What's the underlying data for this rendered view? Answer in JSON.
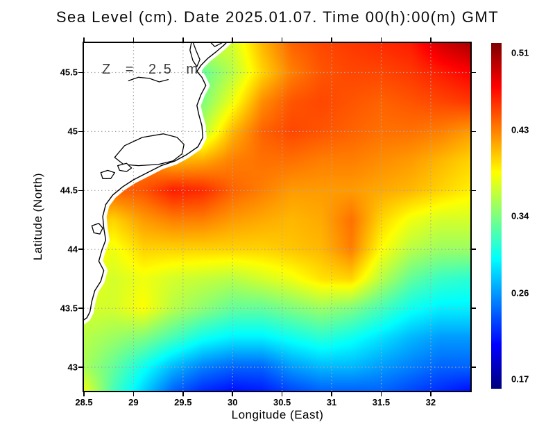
{
  "title": "Sea Level (cm). Date 2025.01.07. Time 00(h):00(m) GMT",
  "annotation": "Z = 2.5 m",
  "axes": {
    "xlabel": "Longitude (East)",
    "ylabel": "Latitude (North)",
    "x_ticks": [
      {
        "value": 28.5,
        "label": "28.5"
      },
      {
        "value": 29,
        "label": "29"
      },
      {
        "value": 29.5,
        "label": "29.5"
      },
      {
        "value": 30,
        "label": "30"
      },
      {
        "value": 30.5,
        "label": "30.5"
      },
      {
        "value": 31,
        "label": "31"
      },
      {
        "value": 31.5,
        "label": "31.5"
      },
      {
        "value": 32,
        "label": "32"
      }
    ],
    "y_ticks": [
      {
        "value": 45.5,
        "label": "45.5"
      },
      {
        "value": 45,
        "label": "45"
      },
      {
        "value": 44.5,
        "label": "44.5"
      },
      {
        "value": 44,
        "label": "44"
      },
      {
        "value": 43.5,
        "label": "43.5"
      },
      {
        "value": 43,
        "label": "43"
      }
    ]
  },
  "colorbar": {
    "vmin": 0.16,
    "vmax": 0.52,
    "labels": [
      {
        "value": 0.51,
        "label": "0.51"
      },
      {
        "value": 0.43,
        "label": "0.43"
      },
      {
        "value": 0.34,
        "label": "0.34"
      },
      {
        "value": 0.26,
        "label": "0.26"
      },
      {
        "value": 0.17,
        "label": "0.17"
      }
    ]
  },
  "colors": {
    "background": "#ffffff",
    "border": "#000000",
    "gridline": "#a8a8a8",
    "land": "#ffffff",
    "coastline": "#000000",
    "annotation_text": "#3d3d3d"
  },
  "chart_data": {
    "type": "heatmap",
    "title": "Sea Level (cm). Date 2025.01.07. Time 00(h):00(m) GMT",
    "xlabel": "Longitude (East)",
    "ylabel": "Latitude (North)",
    "annotation": "Z = 2.5 m",
    "grid": true,
    "colormap": "jet",
    "value_range": [
      0.16,
      0.52
    ],
    "colorbar_ticks": [
      0.51,
      0.43,
      0.34,
      0.26,
      0.17
    ],
    "xlim": [
      28.5,
      32.4
    ],
    "ylim": [
      42.8,
      45.75
    ],
    "x": [
      28.5,
      28.8,
      29.1,
      29.4,
      29.7,
      30.0,
      30.3,
      30.6,
      30.9,
      31.2,
      31.5,
      31.8,
      32.1,
      32.4
    ],
    "y": [
      45.75,
      45.5,
      45.25,
      45.0,
      44.75,
      44.5,
      44.25,
      44.0,
      43.75,
      43.5,
      43.25,
      43.0,
      42.8
    ],
    "values": [
      [
        0.4,
        0.4,
        0.4,
        0.39,
        0.37,
        0.37,
        0.41,
        0.44,
        0.45,
        0.455,
        0.46,
        0.465,
        0.49,
        0.505
      ],
      [
        0.4,
        0.4,
        0.4,
        0.37,
        0.33,
        0.36,
        0.4,
        0.43,
        0.445,
        0.45,
        0.45,
        0.455,
        0.465,
        0.475
      ],
      [
        0.41,
        0.41,
        0.41,
        0.38,
        0.34,
        0.38,
        0.425,
        0.445,
        0.45,
        0.445,
        0.44,
        0.445,
        0.45,
        0.455
      ],
      [
        0.42,
        0.42,
        0.42,
        0.4,
        0.36,
        0.41,
        0.44,
        0.45,
        0.445,
        0.44,
        0.435,
        0.435,
        0.43,
        0.42
      ],
      [
        0.43,
        0.43,
        0.43,
        0.41,
        0.415,
        0.43,
        0.435,
        0.435,
        0.43,
        0.43,
        0.425,
        0.42,
        0.41,
        0.4
      ],
      [
        0.44,
        0.44,
        0.445,
        0.465,
        0.46,
        0.44,
        0.43,
        0.42,
        0.42,
        0.42,
        0.415,
        0.41,
        0.4,
        0.39
      ],
      [
        0.41,
        0.4,
        0.42,
        0.43,
        0.43,
        0.42,
        0.415,
        0.41,
        0.415,
        0.435,
        0.4,
        0.38,
        0.37,
        0.37
      ],
      [
        0.39,
        0.38,
        0.4,
        0.4,
        0.4,
        0.4,
        0.4,
        0.405,
        0.41,
        0.43,
        0.385,
        0.36,
        0.35,
        0.35
      ],
      [
        0.38,
        0.37,
        0.38,
        0.37,
        0.365,
        0.36,
        0.37,
        0.38,
        0.395,
        0.4,
        0.36,
        0.33,
        0.315,
        0.31
      ],
      [
        0.37,
        0.37,
        0.385,
        0.36,
        0.345,
        0.33,
        0.33,
        0.34,
        0.35,
        0.34,
        0.32,
        0.3,
        0.29,
        0.29
      ],
      [
        0.36,
        0.35,
        0.34,
        0.32,
        0.3,
        0.29,
        0.29,
        0.3,
        0.31,
        0.3,
        0.285,
        0.27,
        0.26,
        0.26
      ],
      [
        0.355,
        0.33,
        0.3,
        0.27,
        0.25,
        0.24,
        0.24,
        0.26,
        0.27,
        0.27,
        0.26,
        0.25,
        0.24,
        0.24
      ],
      [
        0.38,
        0.32,
        0.28,
        0.24,
        0.22,
        0.21,
        0.215,
        0.23,
        0.24,
        0.24,
        0.24,
        0.23,
        0.22,
        0.21
      ]
    ],
    "coastline": [
      [
        29.97,
        45.78
      ],
      [
        29.91,
        45.73
      ],
      [
        29.84,
        45.68
      ],
      [
        29.75,
        45.62
      ],
      [
        29.68,
        45.56
      ],
      [
        29.64,
        45.51
      ],
      [
        29.69,
        45.46
      ],
      [
        29.73,
        45.39
      ],
      [
        29.68,
        45.31
      ],
      [
        29.64,
        45.22
      ],
      [
        29.66,
        45.14
      ],
      [
        29.69,
        45.05
      ],
      [
        29.7,
        44.95
      ],
      [
        29.65,
        44.87
      ],
      [
        29.53,
        44.8
      ],
      [
        29.42,
        44.75
      ],
      [
        29.28,
        44.71
      ],
      [
        29.14,
        44.65
      ],
      [
        29.0,
        44.59
      ],
      [
        28.89,
        44.53
      ],
      [
        28.79,
        44.46
      ],
      [
        28.72,
        44.38
      ],
      [
        28.69,
        44.28
      ],
      [
        28.7,
        44.18
      ],
      [
        28.72,
        44.08
      ],
      [
        28.68,
        43.99
      ],
      [
        28.65,
        43.9
      ],
      [
        28.7,
        43.82
      ],
      [
        28.67,
        43.73
      ],
      [
        28.61,
        43.65
      ],
      [
        28.58,
        43.56
      ],
      [
        28.56,
        43.47
      ],
      [
        28.53,
        43.42
      ],
      [
        28.48,
        43.39
      ]
    ],
    "lakes": [
      [
        [
          28.81,
          44.78
        ],
        [
          28.91,
          44.88
        ],
        [
          29.09,
          44.95
        ],
        [
          29.3,
          44.98
        ],
        [
          29.44,
          44.95
        ],
        [
          29.51,
          44.89
        ],
        [
          29.49,
          44.81
        ],
        [
          29.4,
          44.75
        ],
        [
          29.25,
          44.72
        ],
        [
          29.05,
          44.71
        ],
        [
          28.9,
          44.72
        ]
      ],
      [
        [
          29.59,
          45.78
        ],
        [
          29.63,
          45.69
        ],
        [
          29.67,
          45.61
        ],
        [
          29.64,
          45.55
        ],
        [
          29.6,
          45.6
        ],
        [
          29.57,
          45.69
        ]
      ],
      [
        [
          28.67,
          44.65
        ],
        [
          28.74,
          44.67
        ],
        [
          28.81,
          44.65
        ],
        [
          28.77,
          44.6
        ],
        [
          28.69,
          44.6
        ]
      ],
      [
        [
          28.84,
          44.71
        ],
        [
          28.93,
          44.73
        ],
        [
          28.98,
          44.69
        ],
        [
          28.93,
          44.66
        ],
        [
          28.86,
          44.67
        ]
      ],
      [
        [
          28.58,
          44.2
        ],
        [
          28.65,
          44.22
        ],
        [
          28.69,
          44.18
        ],
        [
          28.66,
          44.13
        ],
        [
          28.6,
          44.14
        ]
      ]
    ],
    "rivers": [
      [
        [
          28.95,
          45.43
        ],
        [
          29.05,
          45.46
        ],
        [
          29.16,
          45.45
        ],
        [
          29.26,
          45.42
        ],
        [
          29.35,
          45.44
        ]
      ],
      [
        [
          29.75,
          45.78
        ],
        [
          29.82,
          45.72
        ],
        [
          29.89,
          45.75
        ],
        [
          29.94,
          45.78
        ]
      ]
    ]
  }
}
